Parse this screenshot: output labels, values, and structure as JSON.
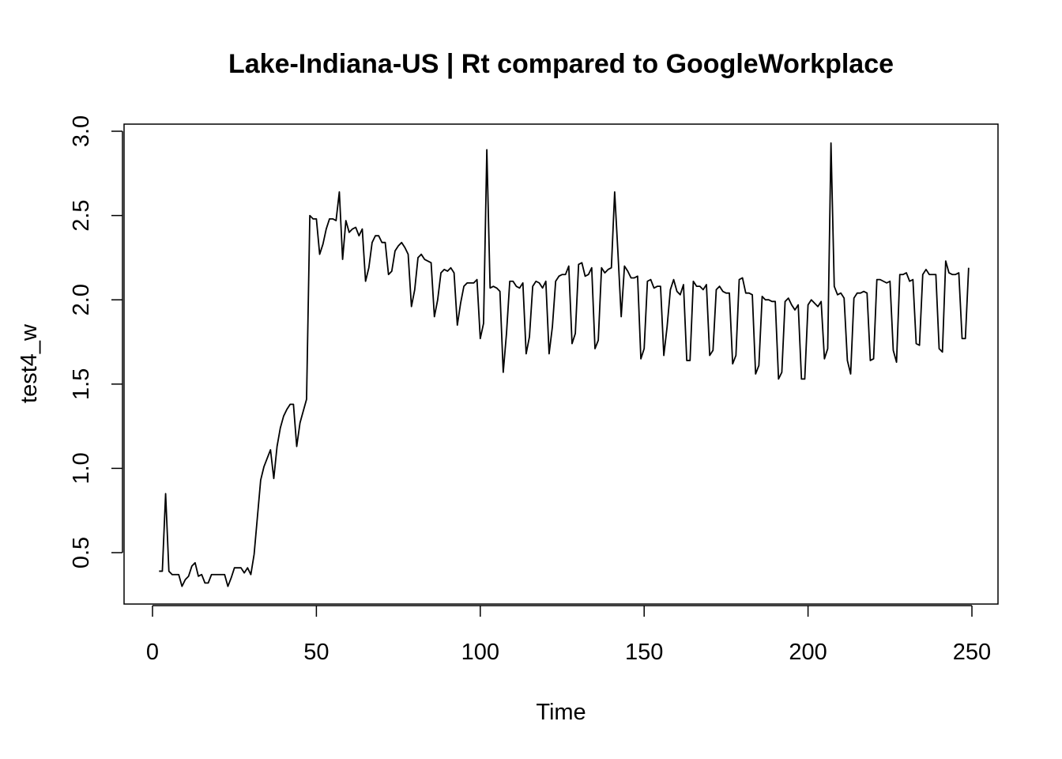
{
  "chart_data": {
    "type": "line",
    "title": "Lake-Indiana-US | Rt compared to GoogleWorkplace",
    "xlabel": "Time",
    "ylabel": "test4_w",
    "xlim": [
      1,
      248
    ],
    "ylim": [
      0.3,
      3.0
    ],
    "x_ticks": [
      0,
      50,
      100,
      150,
      200,
      250
    ],
    "x_tick_labels": [
      "0",
      "50",
      "100",
      "150",
      "200",
      "250"
    ],
    "y_ticks": [
      0.5,
      1.0,
      1.5,
      2.0,
      2.5,
      3.0
    ],
    "y_tick_labels": [
      "0.5",
      "1.0",
      "1.5",
      "2.0",
      "2.5",
      "3.0"
    ],
    "grid": false,
    "legend": "none",
    "series": [
      {
        "color": "#000000",
        "x_start": 2,
        "values": [
          0.39,
          0.39,
          0.85,
          0.39,
          0.37,
          0.37,
          0.37,
          0.3,
          0.34,
          0.36,
          0.42,
          0.44,
          0.36,
          0.37,
          0.32,
          0.32,
          0.37,
          0.37,
          0.37,
          0.37,
          0.37,
          0.3,
          0.35,
          0.41,
          0.41,
          0.41,
          0.38,
          0.41,
          0.37,
          0.49,
          0.71,
          0.93,
          1.01,
          1.06,
          1.11,
          0.94,
          1.13,
          1.24,
          1.31,
          1.35,
          1.38,
          1.38,
          1.13,
          1.27,
          1.34,
          1.41,
          2.5,
          2.48,
          2.48,
          2.27,
          2.33,
          2.42,
          2.48,
          2.48,
          2.47,
          2.64,
          2.24,
          2.47,
          2.4,
          2.42,
          2.43,
          2.38,
          2.42,
          2.11,
          2.19,
          2.34,
          2.38,
          2.38,
          2.34,
          2.34,
          2.15,
          2.17,
          2.29,
          2.32,
          2.34,
          2.31,
          2.27,
          1.96,
          2.06,
          2.25,
          2.27,
          2.24,
          2.23,
          2.22,
          1.9,
          2.0,
          2.16,
          2.18,
          2.17,
          2.19,
          2.16,
          1.85,
          1.98,
          2.08,
          2.1,
          2.1,
          2.1,
          2.12,
          1.77,
          1.86,
          2.89,
          2.07,
          2.08,
          2.07,
          2.05,
          1.57,
          1.8,
          2.11,
          2.11,
          2.08,
          2.07,
          2.1,
          1.68,
          1.78,
          2.08,
          2.11,
          2.1,
          2.07,
          2.11,
          1.68,
          1.84,
          2.11,
          2.14,
          2.15,
          2.15,
          2.2,
          1.74,
          1.8,
          2.21,
          2.22,
          2.14,
          2.15,
          2.19,
          1.71,
          1.76,
          2.19,
          2.16,
          2.18,
          2.19,
          2.64,
          2.28,
          1.9,
          2.2,
          2.17,
          2.13,
          2.13,
          2.14,
          1.65,
          1.71,
          2.11,
          2.12,
          2.07,
          2.08,
          2.08,
          1.67,
          1.84,
          2.06,
          2.12,
          2.05,
          2.03,
          2.09,
          1.64,
          1.64,
          2.11,
          2.08,
          2.08,
          2.06,
          2.09,
          1.67,
          1.7,
          2.06,
          2.08,
          2.05,
          2.04,
          2.04,
          1.62,
          1.67,
          2.12,
          2.13,
          2.04,
          2.04,
          2.03,
          1.56,
          1.61,
          2.02,
          2.0,
          2.0,
          1.99,
          1.99,
          1.53,
          1.57,
          1.99,
          2.01,
          1.97,
          1.94,
          1.97,
          1.53,
          1.53,
          1.97,
          2.0,
          1.98,
          1.96,
          1.99,
          1.65,
          1.71,
          2.93,
          2.08,
          2.03,
          2.04,
          2.01,
          1.64,
          1.56,
          2.01,
          2.04,
          2.04,
          2.05,
          2.04,
          1.64,
          1.65,
          2.12,
          2.12,
          2.11,
          2.1,
          2.11,
          1.7,
          1.63,
          2.15,
          2.15,
          2.16,
          2.11,
          2.12,
          1.74,
          1.73,
          2.15,
          2.18,
          2.15,
          2.15,
          2.15,
          1.71,
          1.69,
          2.23,
          2.16,
          2.15,
          2.15,
          2.16,
          1.77,
          1.77,
          2.19
        ]
      }
    ]
  }
}
